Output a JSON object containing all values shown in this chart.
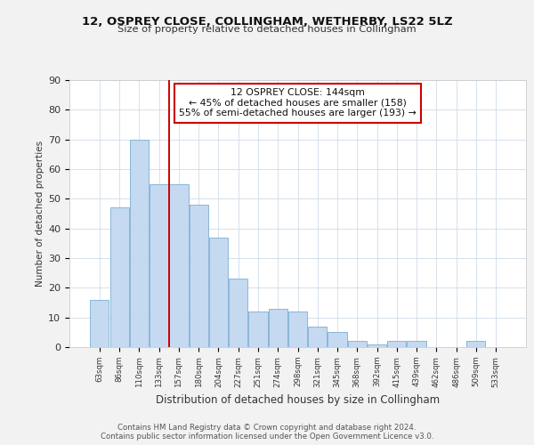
{
  "title1": "12, OSPREY CLOSE, COLLINGHAM, WETHERBY, LS22 5LZ",
  "title2": "Size of property relative to detached houses in Collingham",
  "xlabel": "Distribution of detached houses by size in Collingham",
  "ylabel": "Number of detached properties",
  "categories": [
    "63sqm",
    "86sqm",
    "110sqm",
    "133sqm",
    "157sqm",
    "180sqm",
    "204sqm",
    "227sqm",
    "251sqm",
    "274sqm",
    "298sqm",
    "321sqm",
    "345sqm",
    "368sqm",
    "392sqm",
    "415sqm",
    "439sqm",
    "462sqm",
    "486sqm",
    "509sqm",
    "533sqm"
  ],
  "values": [
    16,
    47,
    70,
    55,
    55,
    48,
    37,
    23,
    12,
    13,
    12,
    7,
    5,
    2,
    1,
    2,
    2,
    0,
    0,
    2,
    0
  ],
  "bar_color": "#c5d9f0",
  "bar_edge_color": "#7bafd4",
  "vline_x": 3.5,
  "vline_color": "#cc0000",
  "annotation_text": "12 OSPREY CLOSE: 144sqm\n← 45% of detached houses are smaller (158)\n55% of semi-detached houses are larger (193) →",
  "annotation_box_color": "#ffffff",
  "annotation_box_edge": "#cc0000",
  "ylim": [
    0,
    90
  ],
  "yticks": [
    0,
    10,
    20,
    30,
    40,
    50,
    60,
    70,
    80,
    90
  ],
  "footer1": "Contains HM Land Registry data © Crown copyright and database right 2024.",
  "footer2": "Contains public sector information licensed under the Open Government Licence v3.0.",
  "bg_color": "#f2f2f2",
  "plot_bg_color": "#ffffff",
  "grid_color": "#d0dce8"
}
